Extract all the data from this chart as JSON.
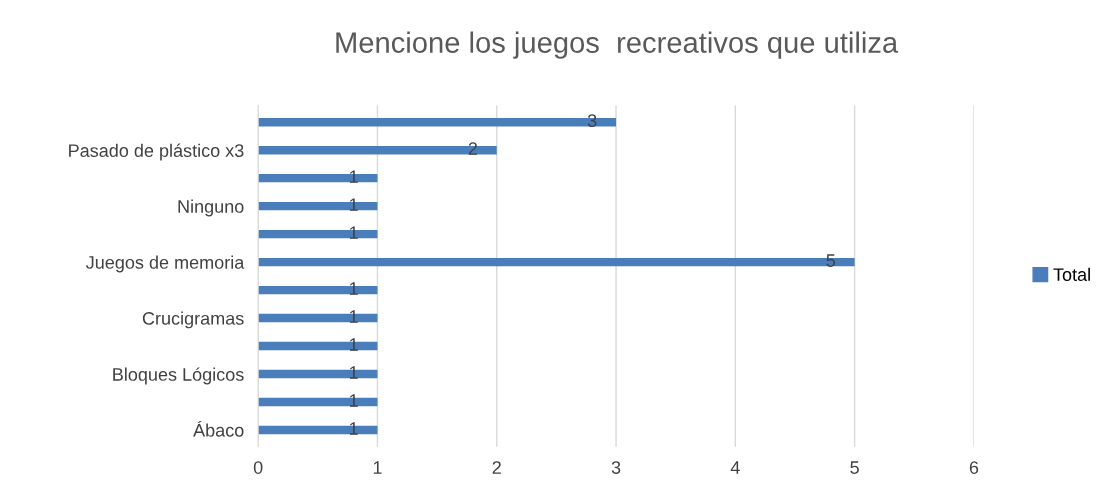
{
  "chart_data": {
    "type": "bar",
    "orientation": "horizontal",
    "title": "Mencione los juegos  recreativos que utiliza",
    "categories": [
      null,
      "Pasado de plástico x3",
      null,
      "Ninguno",
      null,
      "Juegos de memoria",
      null,
      "Crucigramas",
      null,
      "Bloques Lógicos",
      null,
      "Ábaco"
    ],
    "series": [
      {
        "name": "Total",
        "color": "#4a7ebb",
        "values": [
          3,
          2,
          1,
          1,
          1,
          5,
          1,
          1,
          1,
          1,
          1,
          1
        ]
      }
    ],
    "xlim": [
      0,
      6
    ],
    "xticks": [
      0,
      1,
      2,
      3,
      4,
      5,
      6
    ],
    "grid": "x",
    "legend": "right",
    "data_labels": true
  }
}
